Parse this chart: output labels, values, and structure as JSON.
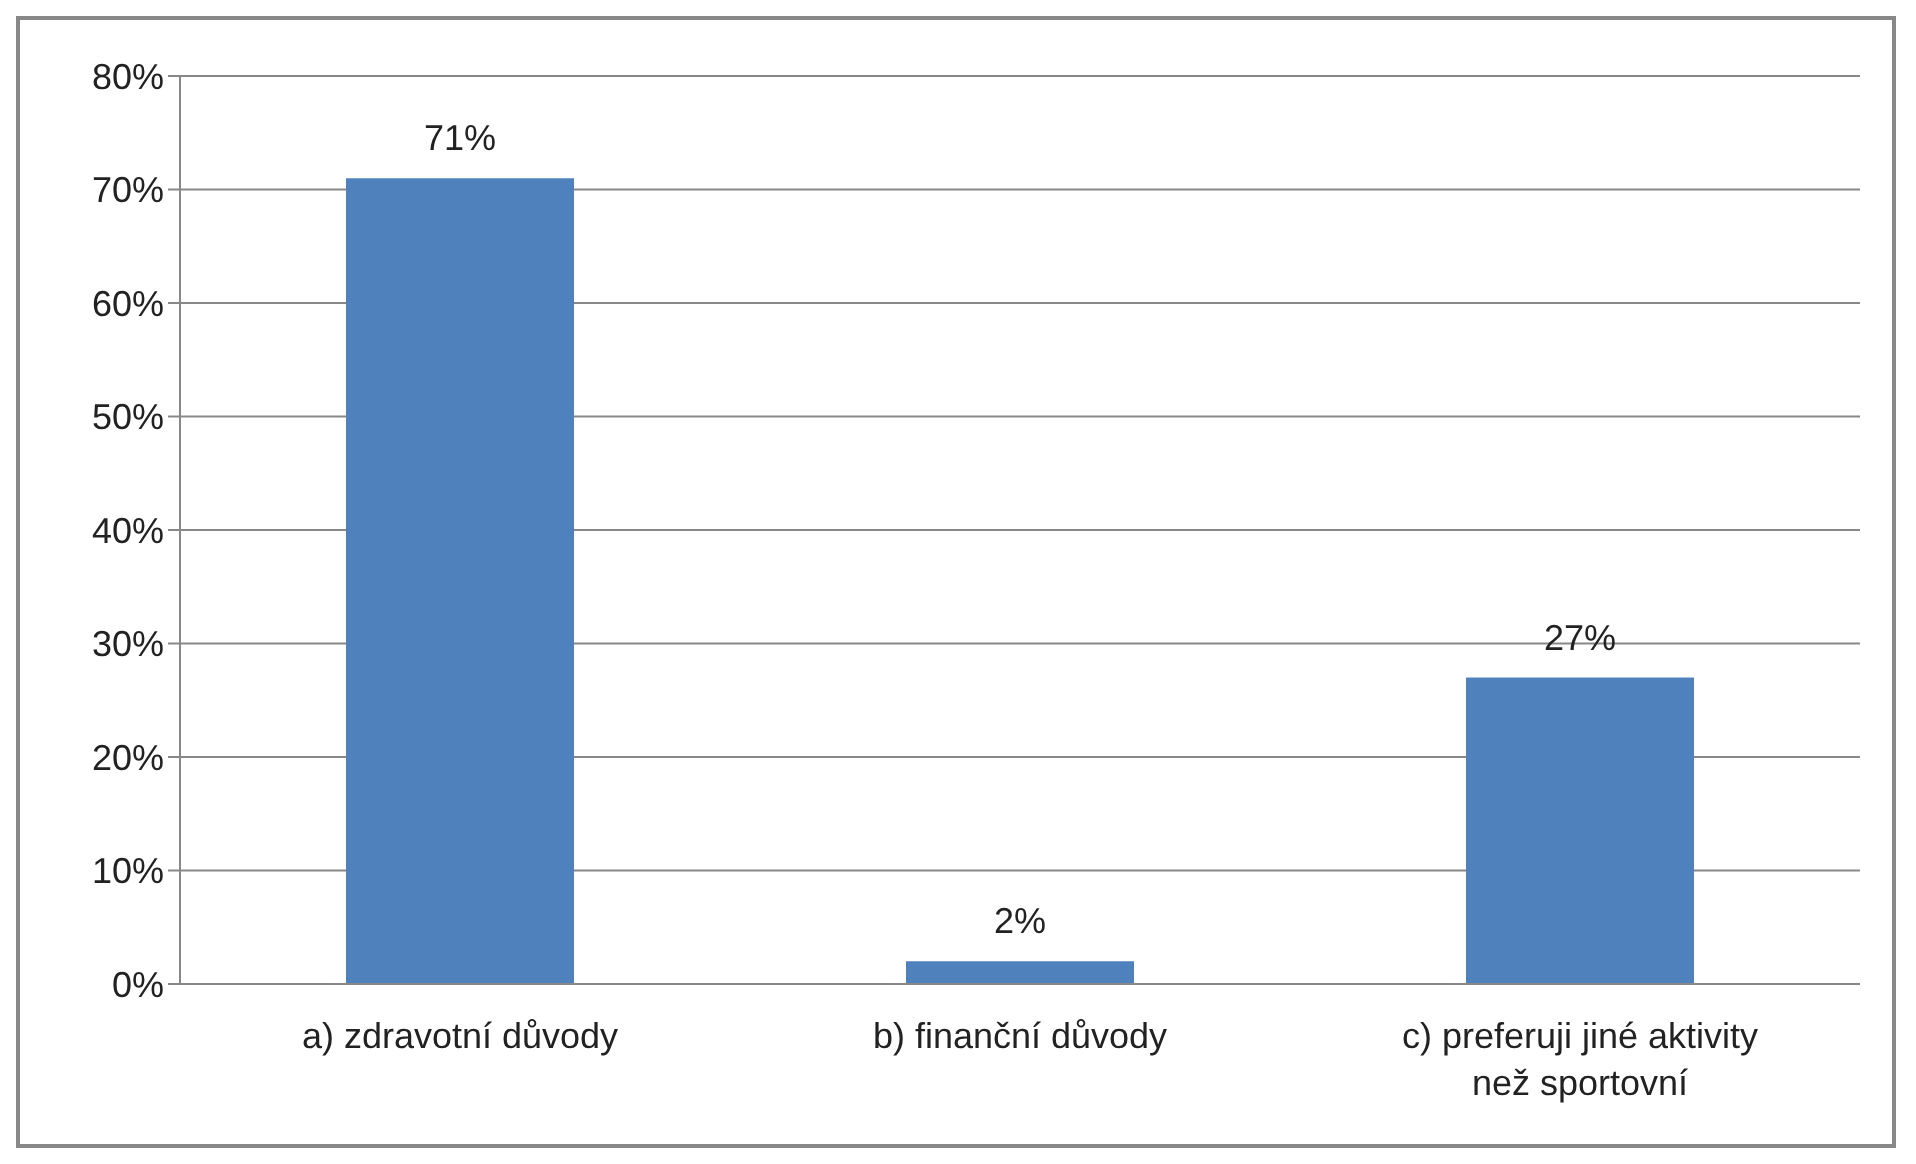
{
  "chart_data": {
    "type": "bar",
    "categories": [
      "a) zdravotní důvody",
      "b) finanční důvody",
      "c) preferuji jiné aktivity než sportovní"
    ],
    "values": [
      71,
      2,
      27
    ],
    "color": "#4f81bd",
    "value_labels": [
      "71%",
      "2%",
      "27%"
    ],
    "ylim": [
      0,
      80
    ],
    "yticks": [
      {
        "value": 0,
        "label": "0%"
      },
      {
        "value": 10,
        "label": "10%"
      },
      {
        "value": 20,
        "label": "20%"
      },
      {
        "value": 30,
        "label": "30%"
      },
      {
        "value": 40,
        "label": "40%"
      },
      {
        "value": 50,
        "label": "50%"
      },
      {
        "value": 60,
        "label": "60%"
      },
      {
        "value": 70,
        "label": "70%"
      },
      {
        "value": 80,
        "label": "80%"
      }
    ],
    "grid": "y",
    "legend": false
  }
}
